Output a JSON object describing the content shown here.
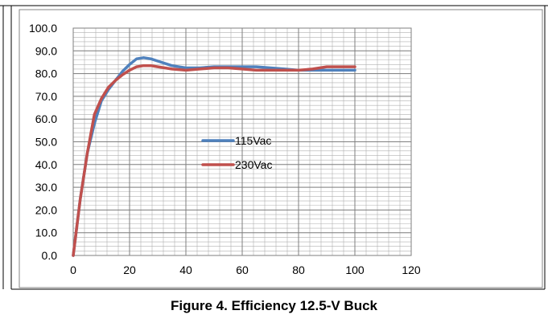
{
  "caption": "Figure 4. Efficiency 12.5-V Buck",
  "chart_data": {
    "type": "line",
    "title": "",
    "xlabel": "",
    "ylabel": "",
    "xlim": [
      0,
      120
    ],
    "ylim": [
      0,
      100
    ],
    "x_ticks": [
      "0",
      "20",
      "40",
      "60",
      "80",
      "100",
      "120"
    ],
    "y_ticks": [
      "0.0",
      "10.0",
      "20.0",
      "30.0",
      "40.0",
      "50.0",
      "60.0",
      "70.0",
      "80.0",
      "90.0",
      "100.0"
    ],
    "grid": true,
    "legend_position": "center",
    "series": [
      {
        "name": "115Vac",
        "color": "#4f81bd",
        "x": [
          0,
          2.5,
          5,
          7.5,
          10,
          12.5,
          15,
          17.5,
          20,
          22.5,
          25,
          27.5,
          30,
          35,
          40,
          45,
          50,
          55,
          60,
          65,
          70,
          75,
          80,
          85,
          90,
          95,
          100
        ],
        "y": [
          0,
          25,
          45,
          58,
          68,
          73,
          77,
          81,
          84,
          86.5,
          87,
          86.5,
          85.5,
          83.5,
          82.5,
          82.5,
          83,
          83,
          83,
          83,
          82.5,
          82,
          81.5,
          81.5,
          81.5,
          81.5,
          81.5
        ]
      },
      {
        "name": "230Vac",
        "color": "#c0504d",
        "x": [
          0,
          2.5,
          5,
          7.5,
          10,
          12.5,
          15,
          17.5,
          20,
          22.5,
          25,
          27.5,
          30,
          35,
          40,
          45,
          50,
          55,
          60,
          65,
          70,
          75,
          80,
          85,
          90,
          95,
          100
        ],
        "y": [
          0,
          25,
          45,
          62,
          69,
          74,
          77,
          79.5,
          81.5,
          83,
          83.5,
          83.5,
          83,
          82,
          81.5,
          82,
          82.5,
          82.5,
          82,
          81.5,
          81.5,
          81.5,
          81.5,
          82,
          83,
          83,
          83
        ]
      }
    ]
  }
}
